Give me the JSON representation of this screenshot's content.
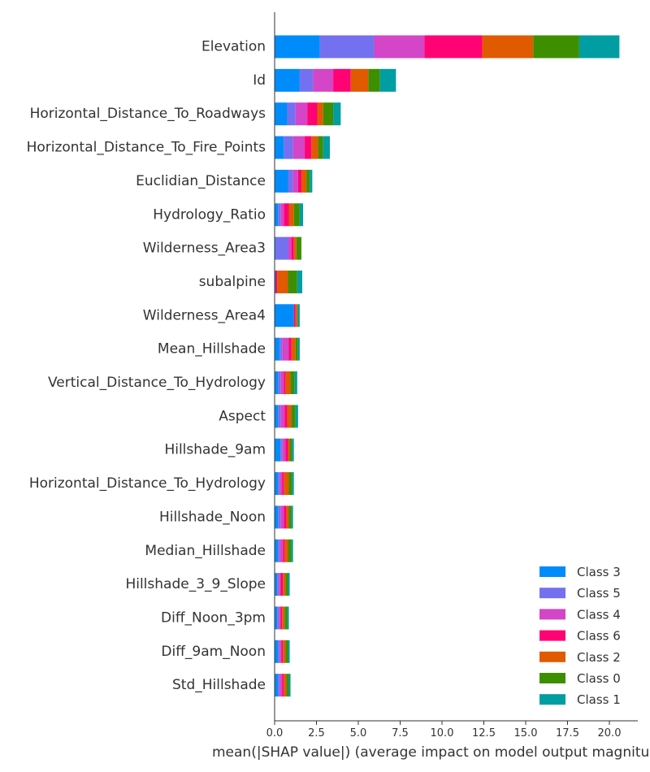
{
  "chart_data": {
    "type": "bar",
    "orientation": "horizontal",
    "stacked": true,
    "title": "",
    "xlabel": "mean(|SHAP value|) (average impact on model output magnitude)",
    "ylabel": "",
    "xlim": [
      0,
      21.8
    ],
    "xticks": [
      "0.0",
      "2.5",
      "5.0",
      "7.5",
      "10.0",
      "12.5",
      "15.0",
      "17.5",
      "20.0"
    ],
    "legend_position": "bottom-right",
    "grid": false,
    "categories": [
      "Elevation",
      "Id",
      "Horizontal_Distance_To_Roadways",
      "Horizontal_Distance_To_Fire_Points",
      "Euclidian_Distance",
      "Hydrology_Ratio",
      "Wilderness_Area3",
      "subalpine",
      "Wilderness_Area4",
      "Mean_Hillshade",
      "Vertical_Distance_To_Hydrology",
      "Aspect",
      "Hillshade_9am",
      "Horizontal_Distance_To_Hydrology",
      "Hillshade_Noon",
      "Median_Hillshade",
      "Hillshade_3_9_Slope",
      "Diff_Noon_3pm",
      "Diff_9am_Noon",
      "Std_Hillshade"
    ],
    "series": [
      {
        "name": "Class 3",
        "color": "#008bfb",
        "values": [
          2.7,
          1.5,
          0.75,
          0.55,
          0.8,
          0.2,
          0.05,
          0.05,
          1.15,
          0.3,
          0.2,
          0.2,
          0.35,
          0.2,
          0.2,
          0.2,
          0.15,
          0.15,
          0.2,
          0.2
        ]
      },
      {
        "name": "Class 5",
        "color": "#7471f0",
        "values": [
          3.25,
          0.8,
          0.5,
          0.55,
          0.3,
          0.15,
          0.75,
          0.0,
          0.0,
          0.15,
          0.15,
          0.15,
          0.1,
          0.1,
          0.15,
          0.1,
          0.1,
          0.1,
          0.1,
          0.1
        ]
      },
      {
        "name": "Class 4",
        "color": "#d445c7",
        "values": [
          3.0,
          1.2,
          0.7,
          0.7,
          0.3,
          0.2,
          0.2,
          0.0,
          0.0,
          0.4,
          0.2,
          0.25,
          0.2,
          0.15,
          0.2,
          0.2,
          0.1,
          0.1,
          0.1,
          0.15
        ]
      },
      {
        "name": "Class 6",
        "color": "#ff0274",
        "values": [
          3.45,
          1.05,
          0.6,
          0.4,
          0.2,
          0.3,
          0.15,
          0.1,
          0.1,
          0.15,
          0.1,
          0.15,
          0.15,
          0.1,
          0.15,
          0.1,
          0.15,
          0.1,
          0.1,
          0.1
        ]
      },
      {
        "name": "Class 2",
        "color": "#e05a00",
        "values": [
          3.05,
          1.05,
          0.35,
          0.4,
          0.3,
          0.3,
          0.15,
          0.65,
          0.1,
          0.25,
          0.3,
          0.25,
          0.1,
          0.3,
          0.15,
          0.2,
          0.15,
          0.15,
          0.15,
          0.15
        ]
      },
      {
        "name": "Class 0",
        "color": "#3d8f00",
        "values": [
          2.75,
          0.7,
          0.6,
          0.3,
          0.2,
          0.35,
          0.3,
          0.55,
          0.05,
          0.15,
          0.25,
          0.25,
          0.15,
          0.2,
          0.15,
          0.2,
          0.15,
          0.15,
          0.15,
          0.15
        ]
      },
      {
        "name": "Class 1",
        "color": "#009da3",
        "values": [
          2.4,
          0.95,
          0.45,
          0.4,
          0.15,
          0.2,
          0.0,
          0.3,
          0.1,
          0.1,
          0.15,
          0.15,
          0.1,
          0.1,
          0.1,
          0.1,
          0.1,
          0.1,
          0.1,
          0.1
        ]
      }
    ],
    "legend_order": [
      "Class 3",
      "Class 5",
      "Class 4",
      "Class 6",
      "Class 2",
      "Class 0",
      "Class 1"
    ]
  }
}
